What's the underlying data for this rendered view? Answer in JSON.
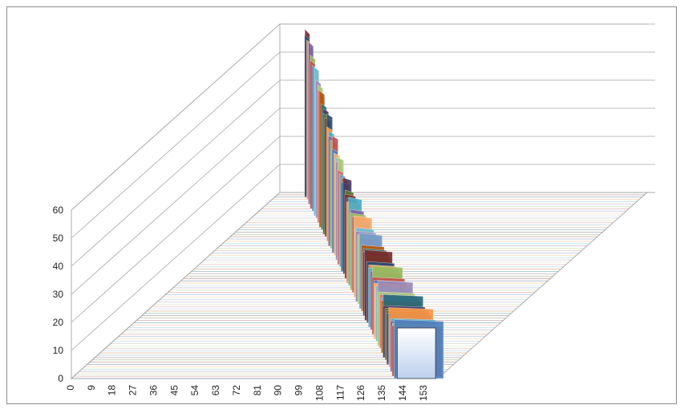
{
  "chart_data": {
    "type": "area",
    "subtype": "3d-area",
    "title": "",
    "xlabel": "",
    "ylabel": "",
    "ylim": [
      0,
      60
    ],
    "yticks": [
      0,
      10,
      20,
      30,
      40,
      50,
      60
    ],
    "x_tick_labels": [
      "0",
      "9",
      "18",
      "27",
      "36",
      "45",
      "54",
      "63",
      "72",
      "81",
      "90",
      "99",
      "108",
      "117",
      "126",
      "135",
      "144",
      "153"
    ],
    "categories_count": 160,
    "series_count": 80,
    "grid": true,
    "legend": "none",
    "series_colors": [
      "#4f81bd",
      "#c0504d",
      "#9bbb59",
      "#8064a2",
      "#4bacc6",
      "#f79646",
      "#2c4d75",
      "#772c2a",
      "#5f7530",
      "#4d3b62",
      "#276a7c",
      "#b65708",
      "#729aca",
      "#cd7371",
      "#afc97a",
      "#9c8ab4",
      "#6fbdd1",
      "#f9ab6b"
    ],
    "front_series": {
      "name": "",
      "values_every_9": [
        0,
        0,
        0,
        0,
        0,
        0,
        0,
        0,
        0,
        0,
        0,
        0,
        0,
        0,
        0,
        0,
        18,
        18
      ],
      "description_values": {
        "from_category": 140,
        "to_category": 158,
        "value": 18
      }
    },
    "envelope_peak": {
      "value": 60,
      "note": "rear series reach the top of the axis"
    }
  }
}
